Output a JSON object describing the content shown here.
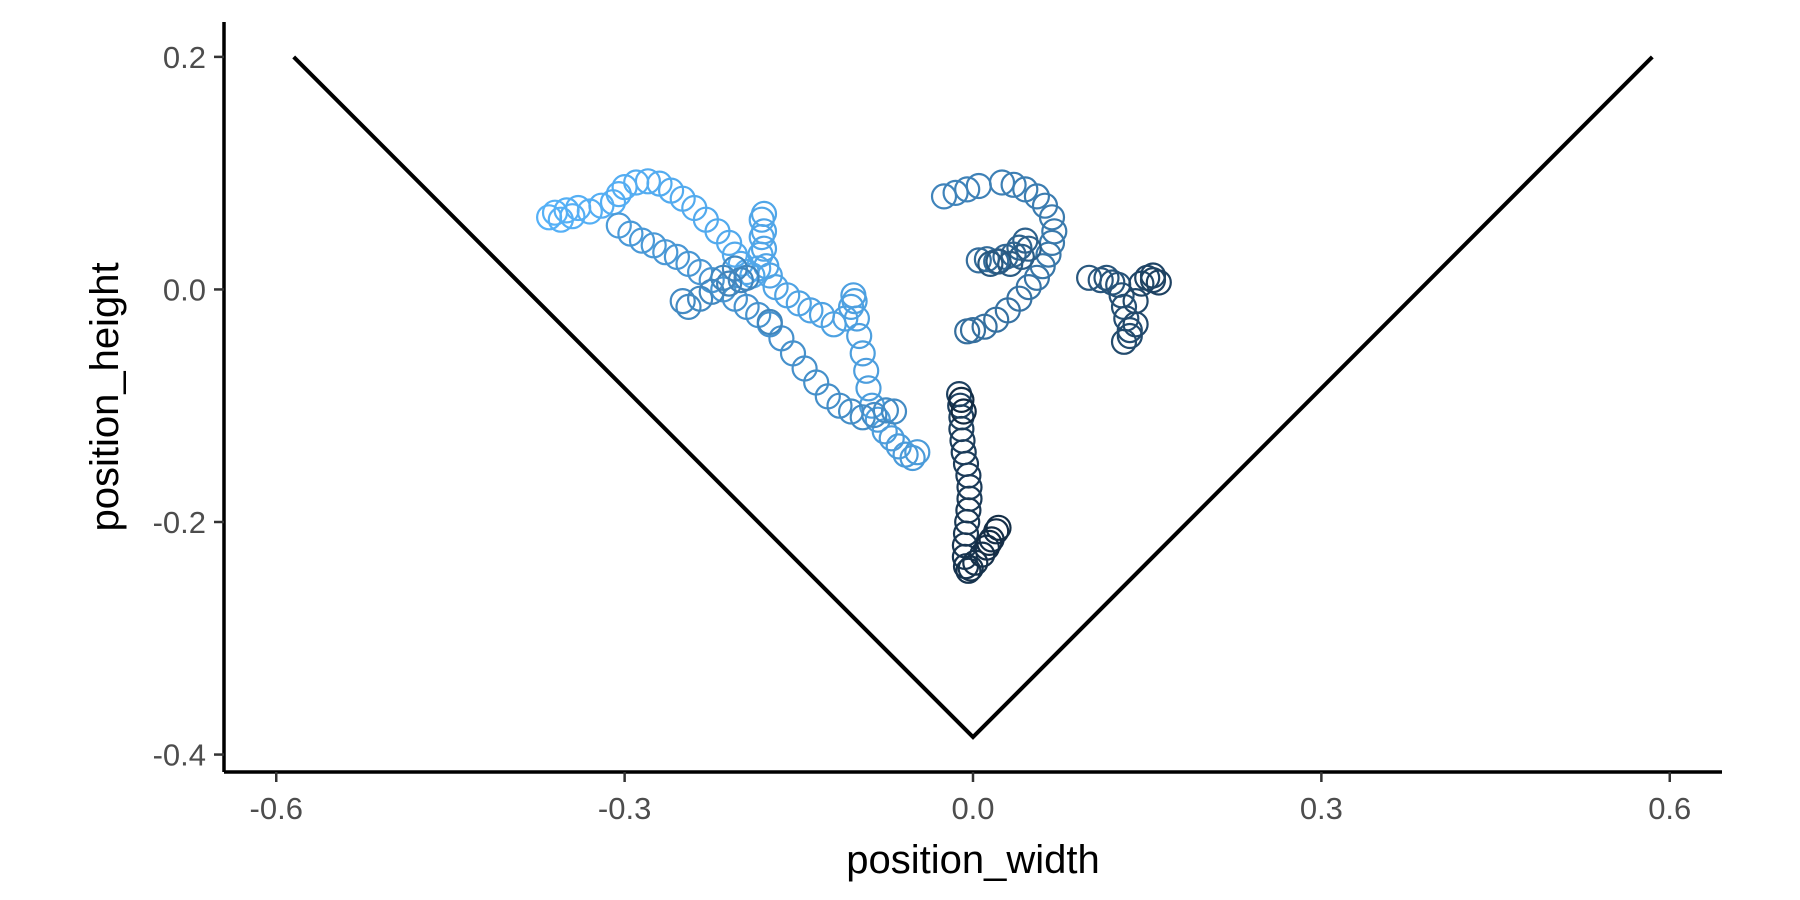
{
  "chart_data": {
    "type": "scatter",
    "title": "",
    "xlabel": "position_width",
    "ylabel": "position_height",
    "xlim": [
      -0.645,
      0.645
    ],
    "ylim": [
      -0.415,
      0.23
    ],
    "xticks": [
      -0.6,
      -0.3,
      0.0,
      0.3,
      0.6
    ],
    "xtick_labels": [
      "-0.6",
      "-0.3",
      "0.0",
      "0.3",
      "0.6"
    ],
    "yticks": [
      0.2,
      0.0,
      -0.2,
      -0.4
    ],
    "ytick_labels": [
      "0.2",
      "0.0",
      "-0.2",
      "-0.4"
    ],
    "grid": false,
    "legend": "none",
    "marker": "open circle",
    "color_gradient": [
      "#56B1F7",
      "#132B43"
    ],
    "boundary_line": {
      "x": [
        -0.585,
        0.0,
        0.585
      ],
      "y": [
        0.2,
        -0.385,
        0.2
      ],
      "color": "#000000"
    },
    "series": [
      {
        "points": [
          [
            -0.365,
            0.062
          ],
          [
            -0.36,
            0.066
          ],
          [
            -0.355,
            0.06
          ],
          [
            -0.35,
            0.068
          ],
          [
            -0.345,
            0.063
          ],
          [
            -0.34,
            0.07
          ],
          [
            -0.33,
            0.067
          ],
          [
            -0.32,
            0.072
          ],
          [
            -0.31,
            0.075
          ],
          [
            -0.305,
            0.082
          ],
          [
            -0.3,
            0.088
          ],
          [
            -0.29,
            0.092
          ],
          [
            -0.28,
            0.093
          ],
          [
            -0.27,
            0.091
          ],
          [
            -0.26,
            0.085
          ],
          [
            -0.25,
            0.078
          ],
          [
            -0.24,
            0.07
          ],
          [
            -0.23,
            0.06
          ],
          [
            -0.22,
            0.05
          ],
          [
            -0.21,
            0.04
          ],
          [
            -0.205,
            0.03
          ],
          [
            -0.2,
            0.022
          ],
          [
            -0.195,
            0.015
          ],
          [
            -0.19,
            0.012
          ],
          [
            -0.185,
            0.018
          ],
          [
            -0.183,
            0.03
          ],
          [
            -0.182,
            0.045
          ],
          [
            -0.182,
            0.06
          ],
          [
            -0.18,
            0.065
          ],
          [
            -0.18,
            0.05
          ],
          [
            -0.18,
            0.035
          ],
          [
            -0.178,
            0.02
          ],
          [
            -0.175,
            0.012
          ],
          [
            -0.17,
            0.002
          ],
          [
            -0.16,
            -0.005
          ],
          [
            -0.15,
            -0.012
          ],
          [
            -0.14,
            -0.018
          ],
          [
            -0.13,
            -0.022
          ],
          [
            -0.12,
            -0.03
          ],
          [
            -0.11,
            -0.025
          ],
          [
            -0.105,
            -0.015
          ],
          [
            -0.103,
            -0.005
          ],
          [
            -0.102,
            -0.01
          ],
          [
            -0.1,
            -0.025
          ],
          [
            -0.098,
            -0.04
          ],
          [
            -0.095,
            -0.055
          ],
          [
            -0.092,
            -0.07
          ],
          [
            -0.09,
            -0.085
          ],
          [
            -0.087,
            -0.1
          ],
          [
            -0.082,
            -0.112
          ],
          [
            -0.076,
            -0.122
          ],
          [
            -0.07,
            -0.128
          ],
          [
            -0.064,
            -0.135
          ],
          [
            -0.058,
            -0.142
          ],
          [
            -0.052,
            -0.145
          ],
          [
            -0.048,
            -0.14
          ]
        ]
      },
      {
        "points": [
          [
            -0.305,
            0.055
          ],
          [
            -0.295,
            0.048
          ],
          [
            -0.285,
            0.042
          ],
          [
            -0.275,
            0.038
          ],
          [
            -0.265,
            0.032
          ],
          [
            -0.255,
            0.028
          ],
          [
            -0.245,
            0.022
          ],
          [
            -0.235,
            0.015
          ],
          [
            -0.225,
            0.008
          ],
          [
            -0.215,
            0.0
          ],
          [
            -0.205,
            -0.008
          ],
          [
            -0.195,
            -0.015
          ],
          [
            -0.185,
            -0.022
          ],
          [
            -0.175,
            -0.03
          ],
          [
            -0.165,
            -0.042
          ],
          [
            -0.155,
            -0.055
          ],
          [
            -0.145,
            -0.068
          ],
          [
            -0.135,
            -0.08
          ],
          [
            -0.125,
            -0.092
          ],
          [
            -0.115,
            -0.1
          ],
          [
            -0.105,
            -0.105
          ],
          [
            -0.095,
            -0.11
          ],
          [
            -0.085,
            -0.108
          ],
          [
            -0.075,
            -0.104
          ],
          [
            -0.068,
            -0.105
          ],
          [
            -0.25,
            -0.01
          ],
          [
            -0.245,
            -0.015
          ],
          [
            -0.235,
            -0.008
          ],
          [
            -0.225,
            -0.002
          ],
          [
            -0.215,
            0.01
          ],
          [
            -0.205,
            0.018
          ],
          [
            -0.195,
            0.01
          ],
          [
            -0.175,
            -0.028
          ],
          [
            -0.2,
            0.008
          ],
          [
            -0.21,
            0.005
          ]
        ]
      },
      {
        "points": [
          [
            -0.025,
            0.08
          ],
          [
            -0.015,
            0.083
          ],
          [
            -0.005,
            0.086
          ],
          [
            0.005,
            0.089
          ],
          [
            0.025,
            0.092
          ],
          [
            0.035,
            0.09
          ],
          [
            0.045,
            0.086
          ],
          [
            0.055,
            0.08
          ],
          [
            0.062,
            0.072
          ],
          [
            0.068,
            0.062
          ],
          [
            0.07,
            0.05
          ],
          [
            0.068,
            0.04
          ],
          [
            0.065,
            0.03
          ],
          [
            0.06,
            0.02
          ],
          [
            0.055,
            0.01
          ],
          [
            0.048,
            0.002
          ],
          [
            0.04,
            -0.008
          ],
          [
            0.03,
            -0.018
          ],
          [
            0.02,
            -0.026
          ],
          [
            0.01,
            -0.032
          ],
          [
            0.0,
            -0.035
          ],
          [
            -0.005,
            -0.036
          ]
        ]
      },
      {
        "points": [
          [
            0.005,
            0.025
          ],
          [
            0.012,
            0.026
          ],
          [
            0.02,
            0.024
          ],
          [
            0.028,
            0.028
          ],
          [
            0.035,
            0.03
          ],
          [
            0.04,
            0.036
          ],
          [
            0.045,
            0.042
          ],
          [
            0.048,
            0.035
          ],
          [
            0.042,
            0.028
          ],
          [
            0.032,
            0.022
          ],
          [
            0.022,
            0.024
          ],
          [
            0.015,
            0.022
          ]
        ]
      },
      {
        "points": [
          [
            0.1,
            0.01
          ],
          [
            0.11,
            0.008
          ],
          [
            0.115,
            0.01
          ],
          [
            0.12,
            0.006
          ],
          [
            0.125,
            0.004
          ],
          [
            0.128,
            -0.005
          ],
          [
            0.13,
            -0.015
          ],
          [
            0.132,
            -0.025
          ],
          [
            0.135,
            -0.035
          ],
          [
            0.135,
            -0.04
          ],
          [
            0.13,
            -0.045
          ],
          [
            0.14,
            -0.03
          ],
          [
            0.14,
            -0.01
          ],
          [
            0.145,
            0.005
          ],
          [
            0.15,
            0.01
          ],
          [
            0.155,
            0.012
          ],
          [
            0.155,
            0.008
          ],
          [
            0.16,
            0.006
          ]
        ]
      },
      {
        "points": [
          [
            -0.012,
            -0.09
          ],
          [
            -0.011,
            -0.1
          ],
          [
            -0.01,
            -0.11
          ],
          [
            -0.01,
            -0.12
          ],
          [
            -0.009,
            -0.13
          ],
          [
            -0.008,
            -0.14
          ],
          [
            -0.006,
            -0.15
          ],
          [
            -0.004,
            -0.16
          ],
          [
            -0.003,
            -0.17
          ],
          [
            -0.003,
            -0.18
          ],
          [
            -0.004,
            -0.19
          ],
          [
            -0.005,
            -0.2
          ],
          [
            -0.006,
            -0.21
          ],
          [
            -0.007,
            -0.22
          ],
          [
            -0.007,
            -0.23
          ],
          [
            -0.006,
            -0.238
          ],
          [
            -0.004,
            -0.242
          ],
          [
            -0.002,
            -0.24
          ],
          [
            0.002,
            -0.235
          ],
          [
            0.008,
            -0.228
          ],
          [
            0.012,
            -0.222
          ],
          [
            0.016,
            -0.215
          ],
          [
            0.02,
            -0.208
          ],
          [
            0.022,
            -0.205
          ],
          [
            0.014,
            -0.218
          ],
          [
            -0.01,
            -0.095
          ],
          [
            -0.008,
            -0.105
          ]
        ]
      }
    ]
  }
}
